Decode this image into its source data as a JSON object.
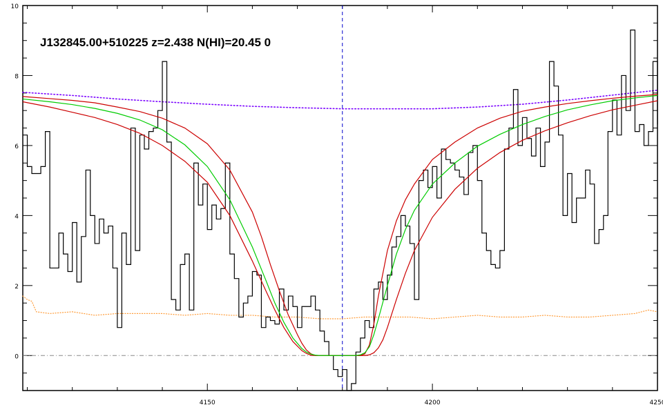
{
  "chart_data": {
    "type": "line",
    "title": "J132845.00+510225 z=2.438 N(HI)=20.45 0",
    "xlabel": "",
    "ylabel": "",
    "xlim": [
      4109,
      4250
    ],
    "ylim": [
      -1,
      10
    ],
    "x_ticks": [
      4150,
      4200,
      4250
    ],
    "y_ticks": [
      0,
      2,
      4,
      6,
      8,
      10
    ],
    "grid": false,
    "legend": "none",
    "absorber_center_x": 4180,
    "zero_level": 0,
    "colors": {
      "flux": "#000000",
      "fit": "#00cc00",
      "fit_bounds": "#cc0000",
      "continuum": "#7a00ff",
      "error": "#ff9933",
      "center_line": "#0000cc",
      "zero_line": "#888888"
    },
    "series": [
      {
        "role": "flux",
        "style": "steps",
        "x": [
          4109,
          4110,
          4111,
          4112,
          4113,
          4114,
          4115,
          4116,
          4117,
          4118,
          4119,
          4120,
          4121,
          4122,
          4123,
          4124,
          4125,
          4126,
          4127,
          4128,
          4129,
          4130,
          4131,
          4132,
          4133,
          4134,
          4135,
          4136,
          4137,
          4138,
          4139,
          4140,
          4141,
          4142,
          4143,
          4144,
          4145,
          4146,
          4147,
          4148,
          4149,
          4150,
          4151,
          4152,
          4153,
          4154,
          4155,
          4156,
          4157,
          4158,
          4159,
          4160,
          4161,
          4162,
          4163,
          4164,
          4165,
          4166,
          4167,
          4168,
          4169,
          4170,
          4171,
          4172,
          4173,
          4174,
          4175,
          4176,
          4177,
          4178,
          4179,
          4180,
          4181,
          4182,
          4183,
          4184,
          4185,
          4186,
          4187,
          4188,
          4189,
          4190,
          4191,
          4192,
          4193,
          4194,
          4195,
          4196,
          4197,
          4198,
          4199,
          4200,
          4201,
          4202,
          4203,
          4204,
          4205,
          4206,
          4207,
          4208,
          4209,
          4210,
          4211,
          4212,
          4213,
          4214,
          4215,
          4216,
          4217,
          4218,
          4219,
          4220,
          4221,
          4222,
          4223,
          4224,
          4225,
          4226,
          4227,
          4228,
          4229,
          4230,
          4231,
          4232,
          4233,
          4234,
          4235,
          4236,
          4237,
          4238,
          4239,
          4240,
          4241,
          4242,
          4243,
          4244,
          4245,
          4246,
          4247,
          4248,
          4249,
          4250
        ],
        "y": [
          6.3,
          5.4,
          5.2,
          5.2,
          5.4,
          6.4,
          2.5,
          2.5,
          3.5,
          2.9,
          2.4,
          3.8,
          2.1,
          3.4,
          5.3,
          4.0,
          3.2,
          3.9,
          3.5,
          3.7,
          2.5,
          0.8,
          3.5,
          2.6,
          6.5,
          3.0,
          6.3,
          5.9,
          6.4,
          6.5,
          7.0,
          8.4,
          6.1,
          1.6,
          1.3,
          2.6,
          2.9,
          1.3,
          5.5,
          4.3,
          4.9,
          3.6,
          4.3,
          3.9,
          4.2,
          5.5,
          2.9,
          2.2,
          1.1,
          1.5,
          1.7,
          2.4,
          2.3,
          0.8,
          1.1,
          1.0,
          0.9,
          1.9,
          1.3,
          1.7,
          1.4,
          0.8,
          1.4,
          1.4,
          1.7,
          1.3,
          0.7,
          0.4,
          0.0,
          -0.4,
          -0.6,
          -0.4,
          -1.0,
          -0.8,
          0.1,
          0.5,
          1.0,
          0.8,
          1.9,
          2.1,
          1.6,
          2.3,
          3.1,
          3.4,
          4.0,
          3.7,
          3.2,
          1.6,
          5.0,
          5.3,
          4.8,
          5.4,
          4.5,
          5.9,
          5.6,
          5.5,
          5.3,
          5.1,
          4.6,
          5.8,
          6.0,
          5.0,
          3.5,
          3.0,
          2.6,
          2.5,
          3.0,
          5.9,
          6.5,
          7.6,
          6.0,
          6.8,
          6.2,
          5.7,
          6.5,
          5.4,
          6.1,
          8.4,
          7.7,
          6.3,
          4.0,
          5.2,
          3.8,
          4.5,
          4.5,
          5.3,
          4.9,
          3.2,
          3.6,
          4.0,
          6.4,
          7.3,
          6.3,
          8.0,
          7.0,
          9.3,
          6.4,
          6.6,
          6.0,
          6.4,
          8.4,
          6.6
        ],
        "y_last_step_to": 6.3
      },
      {
        "role": "fit",
        "x": [
          4109,
          4115,
          4120,
          4125,
          4130,
          4135,
          4140,
          4145,
          4150,
          4155,
          4160,
          4163,
          4165,
          4167,
          4169,
          4171,
          4172,
          4173,
          4174,
          4175,
          4176,
          4180,
          4183,
          4184,
          4185,
          4186,
          4187,
          4188,
          4190,
          4192,
          4194,
          4196,
          4200,
          4205,
          4210,
          4215,
          4220,
          4225,
          4230,
          4235,
          4240,
          4245,
          4250
        ],
        "y": [
          7.33,
          7.25,
          7.17,
          7.06,
          6.92,
          6.73,
          6.45,
          6.02,
          5.4,
          4.45,
          3.1,
          2.15,
          1.5,
          0.95,
          0.5,
          0.2,
          0.1,
          0.04,
          0.01,
          0.0,
          0.0,
          0.0,
          0.0,
          0.02,
          0.08,
          0.25,
          0.6,
          1.05,
          2.0,
          2.9,
          3.6,
          4.15,
          4.9,
          5.5,
          5.98,
          6.32,
          6.6,
          6.83,
          7.02,
          7.16,
          7.28,
          7.36,
          7.43
        ]
      },
      {
        "role": "fit_upper",
        "x": [
          4109,
          4115,
          4120,
          4125,
          4130,
          4135,
          4140,
          4145,
          4150,
          4155,
          4160,
          4162,
          4164,
          4166,
          4168,
          4170,
          4171,
          4172,
          4173,
          4174,
          4175,
          4180,
          4184,
          4185,
          4186,
          4187,
          4188,
          4190,
          4192,
          4194,
          4196,
          4200,
          4205,
          4210,
          4215,
          4220,
          4225,
          4230,
          4235,
          4240,
          4245,
          4250
        ],
        "y": [
          7.4,
          7.34,
          7.29,
          7.22,
          7.1,
          6.97,
          6.78,
          6.5,
          6.05,
          5.3,
          4.1,
          3.4,
          2.6,
          1.85,
          1.15,
          0.6,
          0.35,
          0.16,
          0.05,
          0.0,
          0.0,
          0.0,
          0.0,
          0.05,
          0.3,
          0.9,
          1.7,
          3.0,
          3.85,
          4.45,
          4.9,
          5.6,
          6.1,
          6.5,
          6.78,
          6.98,
          7.1,
          7.2,
          7.28,
          7.35,
          7.41,
          7.46
        ]
      },
      {
        "role": "fit_lower",
        "x": [
          4109,
          4115,
          4120,
          4125,
          4130,
          4135,
          4140,
          4145,
          4150,
          4155,
          4160,
          4163,
          4165,
          4167,
          4169,
          4171,
          4172,
          4173,
          4174,
          4175,
          4176,
          4177,
          4180,
          4185,
          4186,
          4187,
          4188,
          4189,
          4190,
          4192,
          4194,
          4196,
          4200,
          4205,
          4210,
          4215,
          4220,
          4225,
          4230,
          4235,
          4240,
          4245,
          4250
        ],
        "y": [
          7.25,
          7.1,
          6.95,
          6.8,
          6.6,
          6.35,
          6.0,
          5.55,
          4.95,
          4.0,
          2.7,
          1.85,
          1.3,
          0.8,
          0.4,
          0.14,
          0.06,
          0.01,
          0.0,
          0.0,
          0.0,
          0.0,
          0.0,
          0.0,
          0.02,
          0.08,
          0.22,
          0.45,
          0.8,
          1.6,
          2.35,
          3.0,
          3.95,
          4.75,
          5.35,
          5.8,
          6.15,
          6.42,
          6.65,
          6.85,
          7.02,
          7.15,
          7.28
        ]
      },
      {
        "role": "continuum",
        "style": "dotted",
        "x": [
          4109,
          4120,
          4130,
          4140,
          4150,
          4160,
          4170,
          4180,
          4190,
          4200,
          4210,
          4220,
          4230,
          4240,
          4250
        ],
        "y": [
          7.52,
          7.43,
          7.33,
          7.25,
          7.18,
          7.12,
          7.08,
          7.05,
          7.05,
          7.05,
          7.1,
          7.18,
          7.3,
          7.44,
          7.58
        ]
      },
      {
        "role": "error",
        "style": "dotted",
        "x": [
          4109,
          4110,
          4111,
          4112,
          4115,
          4120,
          4125,
          4130,
          4135,
          4140,
          4145,
          4150,
          4155,
          4160,
          4165,
          4170,
          4175,
          4180,
          4185,
          4190,
          4195,
          4200,
          4205,
          4210,
          4215,
          4220,
          4225,
          4230,
          4235,
          4240,
          4245,
          4248,
          4250
        ],
        "y": [
          1.7,
          1.6,
          1.55,
          1.25,
          1.2,
          1.25,
          1.15,
          1.2,
          1.2,
          1.2,
          1.15,
          1.2,
          1.15,
          1.15,
          1.1,
          1.1,
          1.05,
          1.05,
          1.1,
          1.1,
          1.1,
          1.05,
          1.1,
          1.15,
          1.1,
          1.1,
          1.15,
          1.1,
          1.1,
          1.15,
          1.2,
          1.3,
          1.25
        ]
      }
    ]
  }
}
